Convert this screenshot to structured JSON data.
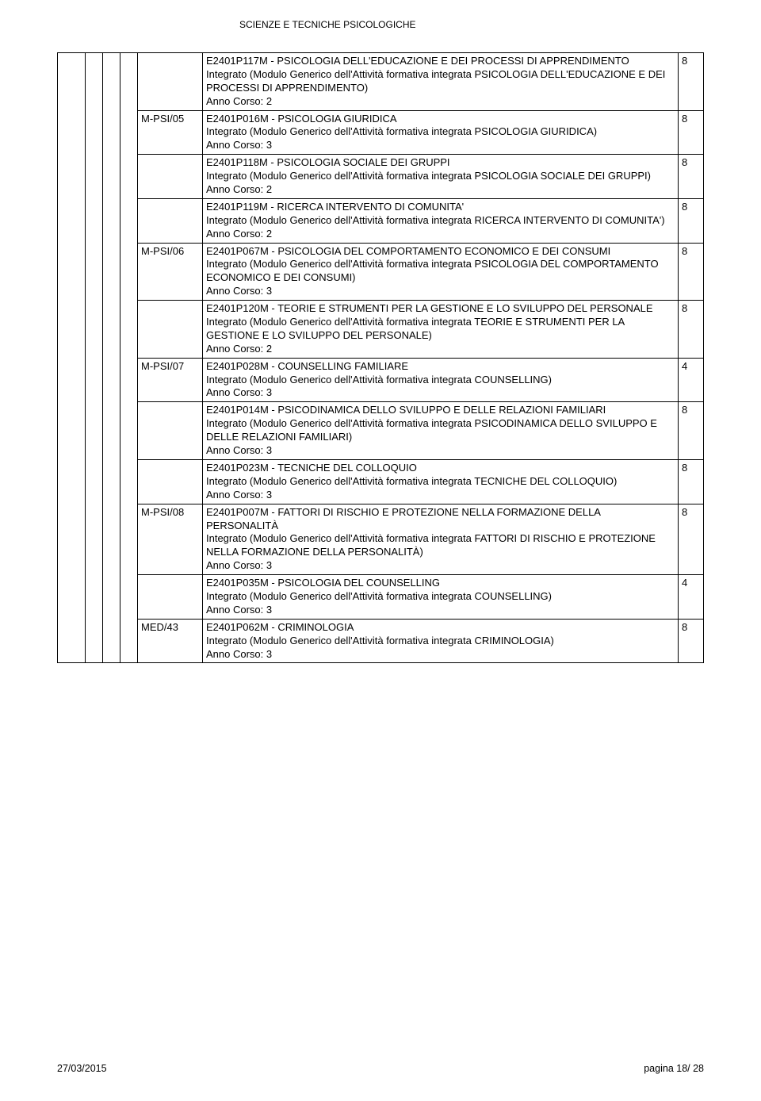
{
  "header": "SCIENZE E TECNICHE PSICOLOGICHE",
  "footer_left": "27/03/2015",
  "footer_right": "pagina 18/ 28",
  "rows": [
    {
      "ssd": "",
      "desc": "E2401P117M - PSICOLOGIA DELL'EDUCAZIONE E DEI PROCESSI DI APPRENDIMENTO\nIntegrato (Modulo Generico dell'Attività formativa integrata PSICOLOGIA DELL'EDUCAZIONE E DEI PROCESSI DI APPRENDIMENTO)\nAnno Corso: 2",
      "cfu": "8"
    },
    {
      "ssd": "M-PSI/05",
      "desc": "E2401P016M - PSICOLOGIA GIURIDICA\nIntegrato (Modulo Generico dell'Attività formativa integrata PSICOLOGIA GIURIDICA)\nAnno Corso: 3",
      "cfu": "8"
    },
    {
      "ssd": "",
      "desc": "E2401P118M - PSICOLOGIA SOCIALE DEI GRUPPI\nIntegrato (Modulo Generico dell'Attività formativa integrata PSICOLOGIA SOCIALE DEI GRUPPI)\nAnno Corso: 2",
      "cfu": "8"
    },
    {
      "ssd": "",
      "desc": "E2401P119M - RICERCA INTERVENTO DI COMUNITA'\nIntegrato (Modulo Generico dell'Attività formativa integrata RICERCA INTERVENTO DI COMUNITA')\nAnno Corso: 2",
      "cfu": "8"
    },
    {
      "ssd": "M-PSI/06",
      "desc": "E2401P067M - PSICOLOGIA DEL COMPORTAMENTO ECONOMICO E DEI CONSUMI\nIntegrato (Modulo Generico dell'Attività formativa integrata PSICOLOGIA DEL COMPORTAMENTO ECONOMICO E DEI CONSUMI)\nAnno Corso: 3",
      "cfu": "8"
    },
    {
      "ssd": "",
      "desc": "E2401P120M - TEORIE E STRUMENTI PER LA GESTIONE E LO SVILUPPO DEL PERSONALE\nIntegrato (Modulo Generico dell'Attività formativa integrata TEORIE E STRUMENTI PER LA GESTIONE E LO SVILUPPO DEL PERSONALE)\nAnno Corso: 2",
      "cfu": "8"
    },
    {
      "ssd": "M-PSI/07",
      "desc": "E2401P028M - COUNSELLING FAMILIARE\nIntegrato (Modulo Generico dell'Attività formativa integrata COUNSELLING)\nAnno Corso: 3",
      "cfu": "4"
    },
    {
      "ssd": "",
      "desc": "E2401P014M - PSICODINAMICA DELLO SVILUPPO E DELLE RELAZIONI FAMILIARI\nIntegrato (Modulo Generico dell'Attività formativa integrata PSICODINAMICA DELLO SVILUPPO E DELLE RELAZIONI FAMILIARI)\nAnno Corso: 3",
      "cfu": "8"
    },
    {
      "ssd": "",
      "desc": "E2401P023M - TECNICHE DEL COLLOQUIO\nIntegrato (Modulo Generico dell'Attività formativa integrata TECNICHE DEL COLLOQUIO)\nAnno Corso: 3",
      "cfu": "8"
    },
    {
      "ssd": "M-PSI/08",
      "desc": "E2401P007M - FATTORI DI RISCHIO E PROTEZIONE NELLA FORMAZIONE DELLA PERSONALITÀ\nIntegrato (Modulo Generico dell'Attività formativa integrata FATTORI DI RISCHIO E PROTEZIONE NELLA FORMAZIONE DELLA PERSONALITÀ)\nAnno Corso: 3",
      "cfu": "8"
    },
    {
      "ssd": "",
      "desc": "E2401P035M - PSICOLOGIA DEL COUNSELLING\nIntegrato (Modulo Generico dell'Attività formativa integrata COUNSELLING)\nAnno Corso: 3",
      "cfu": "4"
    },
    {
      "ssd": "MED/43",
      "desc": "E2401P062M - CRIMINOLOGIA\nIntegrato (Modulo Generico dell'Attività formativa integrata CRIMINOLOGIA)\nAnno Corso: 3",
      "cfu": "8"
    }
  ]
}
